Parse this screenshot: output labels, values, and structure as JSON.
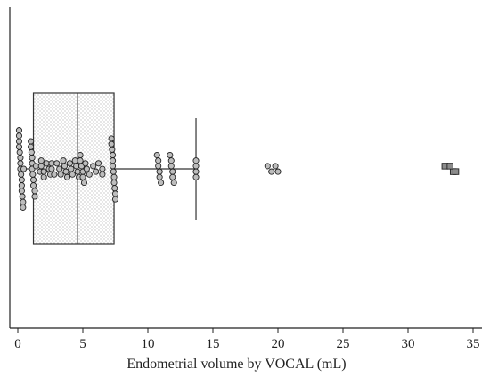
{
  "chart_data": {
    "type": "box",
    "orientation": "horizontal",
    "title": "",
    "xlabel": "Endometrial volume by VOCAL (mL)",
    "ylabel": "",
    "xlim": [
      -0.7,
      36
    ],
    "xticks": [
      0,
      5,
      10,
      15,
      20,
      25,
      30,
      35
    ],
    "xtick_labels": [
      "0",
      "5",
      "10",
      "15",
      "20",
      "25",
      "30",
      "35"
    ],
    "grid": false,
    "box": {
      "q1": 1.2,
      "median": 4.6,
      "q3": 7.4,
      "whisker_low": 0.0,
      "whisker_high": 13.7,
      "fill_pattern": "stipple"
    },
    "points": [
      0.1,
      0.1,
      0.1,
      0.1,
      0.15,
      0.2,
      0.2,
      0.2,
      0.25,
      0.3,
      0.3,
      0.3,
      0.35,
      0.4,
      0.4,
      0.45,
      1.0,
      1.0,
      1.05,
      1.1,
      1.1,
      1.1,
      1.15,
      1.2,
      1.2,
      1.3,
      1.3,
      1.4,
      1.7,
      1.8,
      1.8,
      2.0,
      2.0,
      2.2,
      2.4,
      2.5,
      2.6,
      2.6,
      2.8,
      3.0,
      3.2,
      3.3,
      3.5,
      3.6,
      3.7,
      3.8,
      4.0,
      4.1,
      4.2,
      4.4,
      4.5,
      4.6,
      4.7,
      4.8,
      4.8,
      4.9,
      5.0,
      5.0,
      5.1,
      5.2,
      5.3,
      5.5,
      5.8,
      6.0,
      6.2,
      6.5,
      6.5,
      7.2,
      7.2,
      7.25,
      7.3,
      7.3,
      7.3,
      7.35,
      7.4,
      7.4,
      7.45,
      7.5,
      7.5,
      10.7,
      10.8,
      10.8,
      10.9,
      10.9,
      11.0,
      11.7,
      11.8,
      11.8,
      11.9,
      11.9,
      12.0,
      13.7,
      13.7,
      13.7,
      13.7,
      19.2,
      19.5,
      19.8,
      20.0
    ],
    "outliers": [
      33.0,
      33.3,
      33.4,
      33.5
    ],
    "colors": {
      "points": "#bdbdbd",
      "outlier_marker": "#8c8c8c",
      "box_stroke": "#333333",
      "stipple": "#8a8a8a",
      "axis": "#222222"
    },
    "marker_shapes": {
      "points": "circle",
      "outliers": "square"
    }
  }
}
